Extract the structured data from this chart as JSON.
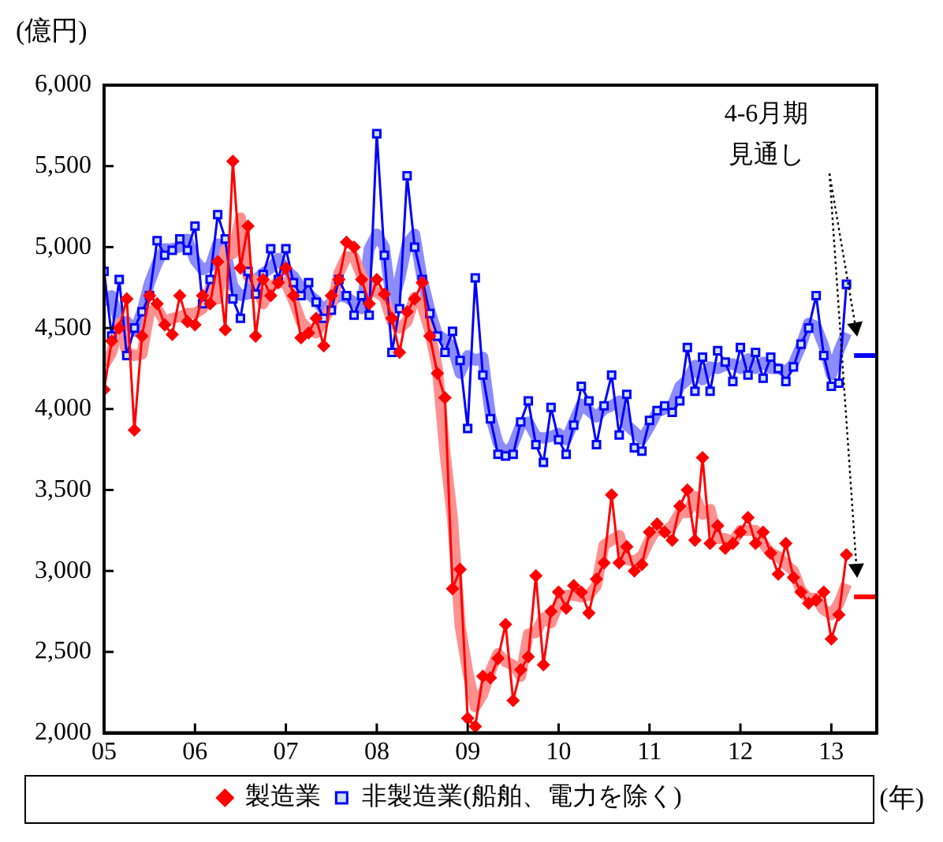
{
  "chart_data": {
    "type": "line",
    "ylabel": "(億円)",
    "xlabel": "(年)",
    "annotations": [
      "4-6月期",
      "見通し"
    ],
    "x": [
      "2005-01",
      "2005-02",
      "2005-03",
      "2005-04",
      "2005-05",
      "2005-06",
      "2005-07",
      "2005-08",
      "2005-09",
      "2005-10",
      "2005-11",
      "2005-12",
      "2006-01",
      "2006-02",
      "2006-03",
      "2006-04",
      "2006-05",
      "2006-06",
      "2006-07",
      "2006-08",
      "2006-09",
      "2006-10",
      "2006-11",
      "2006-12",
      "2007-01",
      "2007-02",
      "2007-03",
      "2007-04",
      "2007-05",
      "2007-06",
      "2007-07",
      "2007-08",
      "2007-09",
      "2007-10",
      "2007-11",
      "2007-12",
      "2008-01",
      "2008-02",
      "2008-03",
      "2008-04",
      "2008-05",
      "2008-06",
      "2008-07",
      "2008-08",
      "2008-09",
      "2008-10",
      "2008-11",
      "2008-12",
      "2009-01",
      "2009-02",
      "2009-03",
      "2009-04",
      "2009-05",
      "2009-06",
      "2009-07",
      "2009-08",
      "2009-09",
      "2009-10",
      "2009-11",
      "2009-12",
      "2010-01",
      "2010-02",
      "2010-03",
      "2010-04",
      "2010-05",
      "2010-06",
      "2010-07",
      "2010-08",
      "2010-09",
      "2010-10",
      "2010-11",
      "2010-12",
      "2011-01",
      "2011-02",
      "2011-03",
      "2011-04",
      "2011-05",
      "2011-06",
      "2011-07",
      "2011-08",
      "2011-09",
      "2011-10",
      "2011-11",
      "2011-12",
      "2012-01",
      "2012-02",
      "2012-03",
      "2012-04",
      "2012-05",
      "2012-06",
      "2012-07",
      "2012-08",
      "2012-09",
      "2012-10",
      "2012-11",
      "2012-12",
      "2013-01",
      "2013-02",
      "2013-03"
    ],
    "series": [
      {
        "color": "#ff9090",
        "marker": "none",
        "values": [
          4270,
          4350,
          4530,
          4350,
          4330,
          4340,
          4600,
          4620,
          4540,
          4560,
          4570,
          4590,
          4590,
          4620,
          4750,
          4680,
          4980,
          4960,
          5180,
          4820,
          4790,
          4650,
          4760,
          4780,
          4780,
          4670,
          4540,
          4490,
          4470,
          4550,
          4630,
          4840,
          4940,
          4940,
          4820,
          4750,
          4720,
          4690,
          4540,
          4500,
          4540,
          4690,
          4640,
          4480,
          4250,
          3730,
          3320,
          2660,
          2380,
          2160,
          2240,
          2380,
          2490,
          2440,
          2420,
          2350,
          2610,
          2620,
          2710,
          2680,
          2800,
          2850,
          2850,
          2840,
          2850,
          2910,
          3160,
          3190,
          3220,
          3070,
          3060,
          3090,
          3190,
          3260,
          3240,
          3280,
          3360,
          3360,
          3460,
          3350,
          3380,
          3200,
          3200,
          3180,
          3250,
          3250,
          3250,
          3170,
          3110,
          3090,
          3040,
          3000,
          2880,
          2830,
          2830,
          2760,
          2730,
          2800,
          2920
        ]
      },
      {
        "color": "#8c8cff",
        "marker": "none",
        "values": [
          4650,
          4700,
          4530,
          4540,
          4480,
          4600,
          4780,
          4900,
          4990,
          4990,
          5000,
          5050,
          4920,
          4860,
          4880,
          5020,
          4980,
          4760,
          4700,
          4710,
          4800,
          4840,
          4870,
          4930,
          4860,
          4820,
          4750,
          4710,
          4670,
          4610,
          4660,
          4700,
          4690,
          4660,
          4620,
          4990,
          5080,
          5000,
          4640,
          4800,
          5020,
          5080,
          4800,
          4610,
          4460,
          4430,
          4380,
          4220,
          4330,
          4300,
          4320,
          3960,
          3790,
          3720,
          3780,
          3900,
          3920,
          3830,
          3820,
          3830,
          3850,
          3810,
          3920,
          4030,
          3990,
          3950,
          4000,
          4020,
          4050,
          3900,
          3860,
          3810,
          3890,
          3980,
          4000,
          4020,
          4140,
          4180,
          4270,
          4180,
          4260,
          4250,
          4270,
          4280,
          4250,
          4310,
          4250,
          4290,
          4250,
          4250,
          4230,
          4280,
          4390,
          4530,
          4510,
          4390,
          4210,
          4360,
          4470
        ]
      },
      {
        "name": "製造業",
        "color": "#ff0000",
        "marker": "diamond",
        "values": [
          4120,
          4420,
          4500,
          4680,
          3870,
          4450,
          4700,
          4650,
          4520,
          4460,
          4700,
          4540,
          4520,
          4700,
          4650,
          4910,
          4490,
          5530,
          4870,
          5130,
          4450,
          4800,
          4700,
          4780,
          4870,
          4700,
          4440,
          4470,
          4560,
          4390,
          4700,
          4800,
          5030,
          5000,
          4800,
          4650,
          4800,
          4710,
          4560,
          4350,
          4600,
          4680,
          4780,
          4450,
          4220,
          4070,
          2890,
          3010,
          2090,
          2040,
          2350,
          2340,
          2460,
          2670,
          2200,
          2390,
          2470,
          2970,
          2420,
          2750,
          2870,
          2770,
          2910,
          2870,
          2740,
          2950,
          3050,
          3470,
          3050,
          3150,
          3000,
          3040,
          3240,
          3290,
          3240,
          3190,
          3400,
          3500,
          3190,
          3700,
          3170,
          3280,
          3140,
          3170,
          3240,
          3330,
          3170,
          3240,
          3110,
          2980,
          3170,
          2960,
          2870,
          2800,
          2820,
          2870,
          2580,
          2730,
          3100
        ]
      },
      {
        "name": "非製造業(船舶、電力を除く)",
        "color": "#0000ff",
        "marker": "square",
        "values": [
          4850,
          4450,
          4800,
          4330,
          4500,
          4600,
          4700,
          5040,
          4950,
          4980,
          5050,
          4980,
          5130,
          4650,
          4800,
          5200,
          5050,
          4680,
          4560,
          4850,
          4710,
          4830,
          4990,
          4800,
          4990,
          4780,
          4700,
          4780,
          4660,
          4560,
          4610,
          4800,
          4700,
          4580,
          4700,
          4580,
          5700,
          4950,
          4350,
          4620,
          5440,
          5000,
          4800,
          4590,
          4450,
          4350,
          4480,
          4300,
          3880,
          4810,
          4210,
          3940,
          3720,
          3710,
          3720,
          3920,
          4050,
          3780,
          3670,
          4010,
          3810,
          3720,
          3900,
          4140,
          4050,
          3780,
          4020,
          4210,
          3840,
          4090,
          3760,
          3740,
          3930,
          3990,
          4020,
          3980,
          4050,
          4380,
          4110,
          4320,
          4110,
          4360,
          4290,
          4170,
          4380,
          4210,
          4350,
          4190,
          4320,
          4250,
          4170,
          4260,
          4400,
          4500,
          4700,
          4330,
          4140,
          4160,
          4770
        ]
      },
      {
        "color": "#ff0000",
        "marker": "none",
        "x": [
          "2013-04",
          "2013-07"
        ],
        "values": [
          2840,
          2840
        ]
      },
      {
        "color": "#0000ff",
        "marker": "none",
        "x": [
          "2013-04",
          "2013-07"
        ],
        "values": [
          4330,
          4330
        ]
      }
    ],
    "xlim": [
      "2005-01",
      "2013-07"
    ],
    "xticks": [
      {
        "value": "2005-01",
        "label": "05"
      },
      {
        "value": "2006-01",
        "label": "06"
      },
      {
        "value": "2007-01",
        "label": "07"
      },
      {
        "value": "2008-01",
        "label": "08"
      },
      {
        "value": "2009-01",
        "label": "09"
      },
      {
        "value": "2010-01",
        "label": "10"
      },
      {
        "value": "2011-01",
        "label": "11"
      },
      {
        "value": "2012-01",
        "label": "12"
      },
      {
        "value": "2013-01",
        "label": "13"
      }
    ],
    "ylim": [
      2000,
      6000
    ],
    "yticks": [
      {
        "value": 2000,
        "label": "2,000"
      },
      {
        "value": 2500,
        "label": "2,500"
      },
      {
        "value": 3000,
        "label": "3,000"
      },
      {
        "value": 3500,
        "label": "3,500"
      },
      {
        "value": 4000,
        "label": "4,000"
      },
      {
        "value": 4500,
        "label": "4,500"
      },
      {
        "value": 5000,
        "label": "5,000"
      },
      {
        "value": 5500,
        "label": "5,500"
      },
      {
        "value": 6000,
        "label": "6,000"
      }
    ],
    "legend": "bottom"
  }
}
